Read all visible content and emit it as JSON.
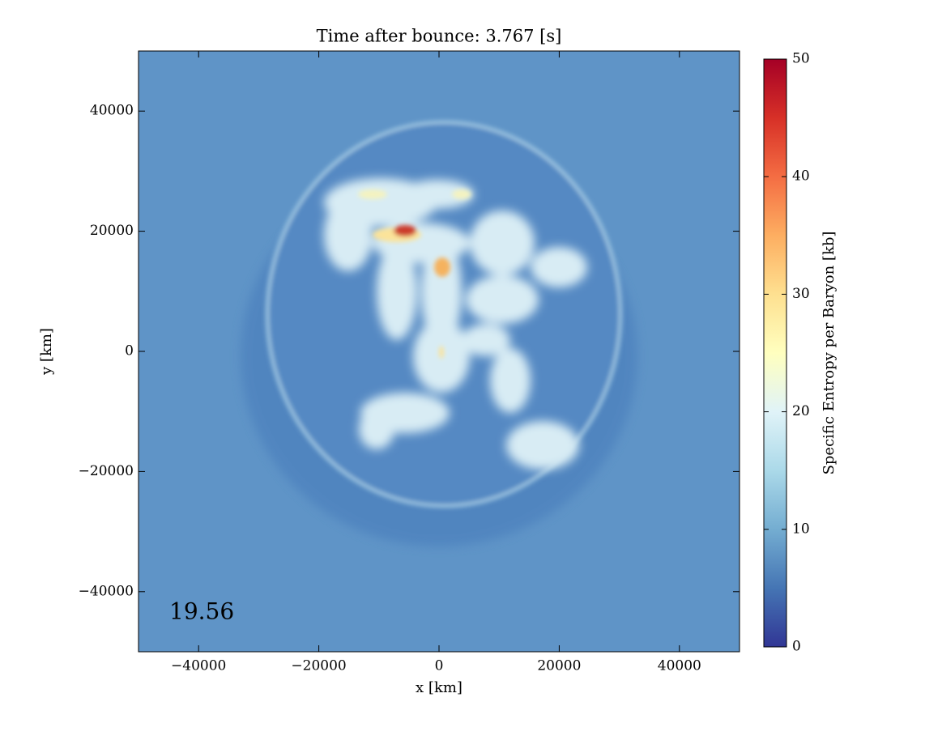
{
  "chart_data": {
    "type": "heatmap",
    "title": "Time after bounce: 3.767 [s]",
    "xlabel": "x [km]",
    "ylabel": "y [km]",
    "xlim": [
      -50000,
      50000
    ],
    "ylim": [
      -50000,
      50000
    ],
    "xticks": [
      {
        "value": -40000,
        "label": "−40000"
      },
      {
        "value": -20000,
        "label": "−20000"
      },
      0,
      20000,
      40000
    ],
    "yticks": [
      {
        "value": -40000,
        "label": "−40000"
      },
      {
        "value": -20000,
        "label": "−20000"
      },
      0,
      20000,
      40000
    ],
    "annotation": "19.56",
    "colormap": "RdYlBu_r",
    "colorbar": {
      "label": "Specific Entropy per Baryon [kb]",
      "lim": [
        0,
        50
      ],
      "ticks": [
        0,
        10,
        20,
        30,
        40,
        50
      ]
    }
  }
}
